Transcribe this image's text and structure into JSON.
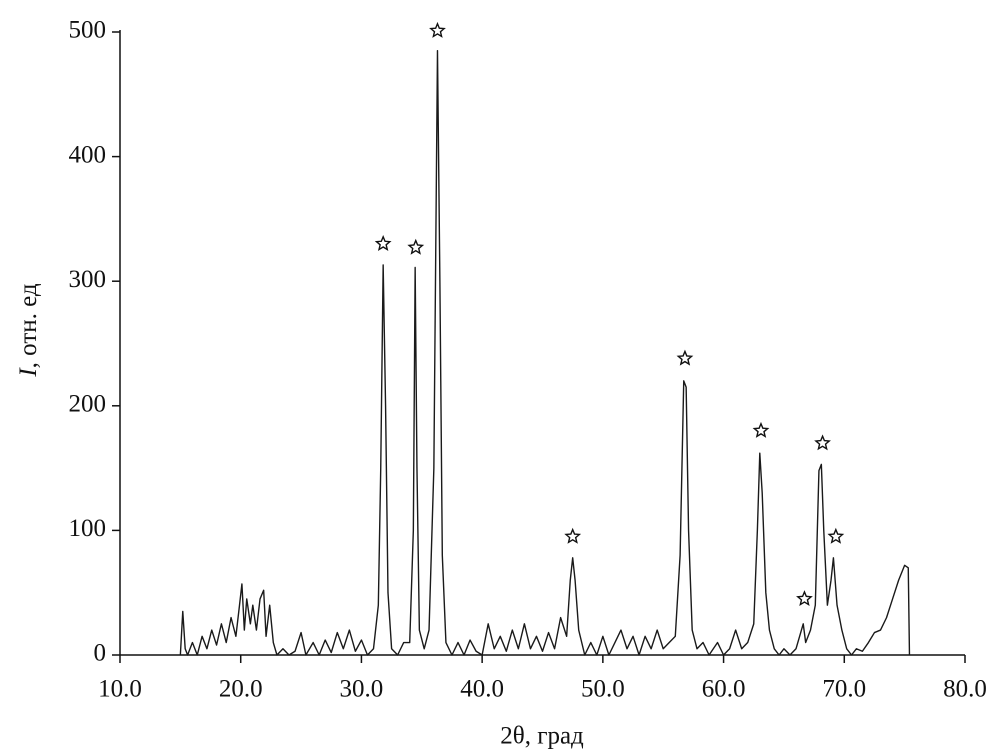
{
  "chart_data": {
    "type": "line",
    "xlabel": "2θ, град",
    "ylabel": [
      "I",
      ", отн. ед"
    ],
    "xlim": [
      10,
      80
    ],
    "xticks": [
      {
        "value": 10,
        "label": "10.0"
      },
      {
        "value": 20,
        "label": "20.0"
      },
      {
        "value": 30,
        "label": "30.0"
      },
      {
        "value": 40,
        "label": "40.0"
      },
      {
        "value": 50,
        "label": "50.0"
      },
      {
        "value": 60,
        "label": "60.0"
      },
      {
        "value": 70,
        "label": "70.0"
      },
      {
        "value": 80,
        "label": "80.0"
      }
    ],
    "ylim": [
      0,
      500
    ],
    "yticks": [
      0,
      100,
      200,
      300,
      400,
      500
    ],
    "grid": false,
    "x": [
      15.0,
      15.2,
      15.4,
      15.6,
      16.0,
      16.4,
      16.8,
      17.2,
      17.6,
      18.0,
      18.4,
      18.8,
      19.2,
      19.6,
      19.9,
      20.1,
      20.3,
      20.5,
      20.8,
      21.0,
      21.3,
      21.6,
      21.9,
      22.1,
      22.4,
      22.7,
      23.0,
      23.5,
      24.0,
      24.5,
      25.0,
      25.4,
      26.0,
      26.5,
      27.0,
      27.5,
      28.0,
      28.5,
      29.0,
      29.5,
      30.0,
      30.5,
      31.0,
      31.4,
      31.6,
      31.8,
      32.0,
      32.2,
      32.5,
      33.0,
      33.5,
      34.0,
      34.3,
      34.45,
      34.6,
      34.8,
      35.2,
      35.6,
      36.0,
      36.3,
      36.5,
      36.7,
      37.0,
      37.5,
      38.0,
      38.5,
      39.0,
      39.5,
      40.0,
      40.5,
      41.0,
      41.5,
      42.0,
      42.5,
      43.0,
      43.5,
      44.0,
      44.5,
      45.0,
      45.5,
      46.0,
      46.5,
      47.0,
      47.3,
      47.5,
      47.7,
      48.0,
      48.5,
      49.0,
      49.5,
      50.0,
      50.5,
      51.0,
      51.5,
      52.0,
      52.5,
      53.0,
      53.5,
      54.0,
      54.5,
      55.0,
      55.5,
      56.0,
      56.4,
      56.7,
      56.9,
      57.1,
      57.4,
      57.8,
      58.3,
      58.8,
      59.5,
      60.0,
      60.5,
      61.0,
      61.5,
      62.0,
      62.5,
      62.8,
      63.0,
      63.2,
      63.5,
      63.8,
      64.2,
      64.6,
      65.0,
      65.5,
      66.0,
      66.3,
      66.6,
      66.8,
      67.2,
      67.6,
      67.9,
      68.1,
      68.3,
      68.6,
      68.9,
      69.1,
      69.4,
      69.8,
      70.2,
      70.6,
      71.0,
      71.5,
      72.0,
      72.5,
      73.0,
      73.5,
      74.0,
      74.5,
      75.0,
      75.3,
      75.4
    ],
    "series": [
      {
        "color": "#1a1a1a",
        "values": [
          0,
          35,
          5,
          0,
          10,
          0,
          15,
          5,
          20,
          8,
          25,
          10,
          30,
          15,
          40,
          57,
          20,
          45,
          25,
          40,
          20,
          45,
          52,
          15,
          40,
          10,
          0,
          5,
          0,
          3,
          18,
          0,
          10,
          0,
          12,
          2,
          18,
          5,
          20,
          3,
          12,
          0,
          5,
          40,
          150,
          313,
          200,
          50,
          5,
          0,
          10,
          10,
          100,
          311,
          150,
          20,
          5,
          20,
          150,
          485,
          300,
          80,
          10,
          0,
          10,
          0,
          12,
          3,
          0,
          25,
          5,
          15,
          3,
          20,
          5,
          25,
          5,
          15,
          3,
          18,
          5,
          30,
          15,
          60,
          78,
          60,
          20,
          0,
          10,
          0,
          15,
          0,
          10,
          20,
          5,
          15,
          0,
          15,
          5,
          20,
          5,
          10,
          15,
          80,
          220,
          215,
          100,
          20,
          5,
          10,
          0,
          10,
          0,
          5,
          20,
          5,
          10,
          25,
          100,
          162,
          130,
          50,
          20,
          5,
          0,
          5,
          0,
          5,
          15,
          25,
          10,
          20,
          40,
          148,
          153,
          100,
          40,
          60,
          78,
          40,
          20,
          5,
          0,
          5,
          3,
          10,
          18,
          20,
          30,
          45,
          60,
          72,
          70,
          0
        ]
      }
    ],
    "markers": {
      "x": [
        31.8,
        34.5,
        36.3,
        47.5,
        56.8,
        63.1,
        66.7,
        68.2,
        69.3
      ],
      "y": [
        330,
        327,
        501,
        95,
        238,
        180,
        45,
        170,
        95
      ]
    }
  }
}
